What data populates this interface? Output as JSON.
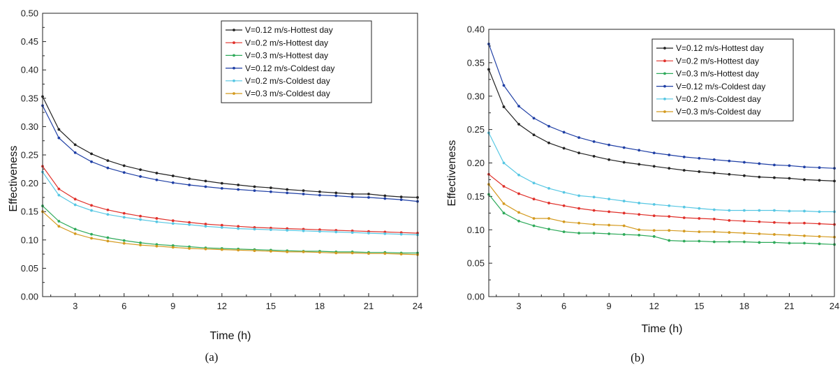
{
  "chart_data": [
    {
      "type": "line",
      "caption": "(a)",
      "xlabel": "Time (h)",
      "ylabel": "Effectiveness",
      "xlim": [
        1,
        24
      ],
      "ylim": [
        0,
        0.5
      ],
      "xticks": [
        3,
        6,
        9,
        12,
        15,
        18,
        21,
        24
      ],
      "yticks": [
        0.0,
        0.05,
        0.1,
        0.15,
        0.2,
        0.25,
        0.3,
        0.35,
        0.4,
        0.45,
        0.5
      ],
      "ytick_decimals": 2,
      "grid": false,
      "legend": "top-right",
      "x": [
        1,
        2,
        3,
        4,
        5,
        6,
        7,
        8,
        9,
        10,
        11,
        12,
        13,
        14,
        15,
        16,
        17,
        18,
        19,
        20,
        21,
        22,
        23,
        24
      ],
      "series": [
        {
          "name": "V=0.12 m/s-Hottest day",
          "color": "#222222",
          "values": [
            0.353,
            0.295,
            0.268,
            0.252,
            0.24,
            0.231,
            0.224,
            0.218,
            0.213,
            0.208,
            0.204,
            0.2,
            0.197,
            0.194,
            0.192,
            0.189,
            0.187,
            0.185,
            0.183,
            0.181,
            0.181,
            0.178,
            0.176,
            0.175
          ]
        },
        {
          "name": "V=0.2 m/s-Hottest day",
          "color": "#e0302a",
          "values": [
            0.23,
            0.19,
            0.172,
            0.161,
            0.153,
            0.147,
            0.142,
            0.138,
            0.134,
            0.131,
            0.128,
            0.126,
            0.124,
            0.122,
            0.121,
            0.12,
            0.119,
            0.118,
            0.117,
            0.116,
            0.115,
            0.114,
            0.113,
            0.112
          ]
        },
        {
          "name": "V=0.3 m/s-Hottest day",
          "color": "#2eaa5a",
          "values": [
            0.16,
            0.133,
            0.119,
            0.11,
            0.104,
            0.099,
            0.095,
            0.092,
            0.09,
            0.088,
            0.086,
            0.085,
            0.084,
            0.083,
            0.082,
            0.081,
            0.08,
            0.08,
            0.079,
            0.079,
            0.078,
            0.078,
            0.077,
            0.077
          ]
        },
        {
          "name": "V=0.12 m/s-Coldest day",
          "color": "#1f3fa5",
          "values": [
            0.337,
            0.28,
            0.254,
            0.238,
            0.227,
            0.219,
            0.212,
            0.206,
            0.201,
            0.197,
            0.194,
            0.191,
            0.189,
            0.187,
            0.185,
            0.183,
            0.181,
            0.179,
            0.178,
            0.176,
            0.175,
            0.173,
            0.171,
            0.168
          ]
        },
        {
          "name": "V=0.2 m/s-Coldest day",
          "color": "#57c7e3",
          "values": [
            0.22,
            0.179,
            0.162,
            0.152,
            0.145,
            0.14,
            0.136,
            0.132,
            0.129,
            0.127,
            0.124,
            0.122,
            0.12,
            0.119,
            0.118,
            0.117,
            0.116,
            0.115,
            0.114,
            0.113,
            0.112,
            0.111,
            0.11,
            0.109
          ]
        },
        {
          "name": "V=0.3 m/s-Coldest day",
          "color": "#d49a1f",
          "values": [
            0.15,
            0.124,
            0.111,
            0.103,
            0.098,
            0.094,
            0.091,
            0.089,
            0.087,
            0.085,
            0.084,
            0.083,
            0.082,
            0.081,
            0.08,
            0.079,
            0.079,
            0.078,
            0.077,
            0.077,
            0.076,
            0.076,
            0.075,
            0.074
          ]
        }
      ]
    },
    {
      "type": "line",
      "caption": "(b)",
      "xlabel": "Time (h)",
      "ylabel": "Effectiveness",
      "xlim": [
        1,
        24
      ],
      "ylim": [
        0,
        0.4
      ],
      "xticks": [
        3,
        6,
        9,
        12,
        15,
        18,
        21,
        24
      ],
      "yticks": [
        0.0,
        0.05,
        0.1,
        0.15,
        0.2,
        0.25,
        0.3,
        0.35,
        0.4
      ],
      "ytick_decimals": 2,
      "grid": false,
      "legend": "top-right",
      "x": [
        1,
        2,
        3,
        4,
        5,
        6,
        7,
        8,
        9,
        10,
        11,
        12,
        13,
        14,
        15,
        16,
        17,
        18,
        19,
        20,
        21,
        22,
        23,
        24
      ],
      "series": [
        {
          "name": "V=0.12 m/s-Hottest day",
          "color": "#222222",
          "values": [
            0.34,
            0.284,
            0.258,
            0.242,
            0.23,
            0.222,
            0.215,
            0.21,
            0.205,
            0.201,
            0.198,
            0.195,
            0.192,
            0.189,
            0.187,
            0.185,
            0.183,
            0.181,
            0.179,
            0.178,
            0.177,
            0.175,
            0.174,
            0.173
          ]
        },
        {
          "name": "V=0.2 m/s-Hottest day",
          "color": "#e0302a",
          "values": [
            0.183,
            0.165,
            0.154,
            0.146,
            0.14,
            0.136,
            0.132,
            0.129,
            0.127,
            0.125,
            0.123,
            0.121,
            0.12,
            0.118,
            0.117,
            0.116,
            0.114,
            0.113,
            0.112,
            0.111,
            0.11,
            0.11,
            0.109,
            0.108
          ]
        },
        {
          "name": "V=0.3 m/s-Hottest day",
          "color": "#2eaa5a",
          "values": [
            0.153,
            0.125,
            0.113,
            0.106,
            0.101,
            0.097,
            0.095,
            0.095,
            0.094,
            0.093,
            0.092,
            0.09,
            0.084,
            0.083,
            0.083,
            0.082,
            0.082,
            0.082,
            0.081,
            0.081,
            0.08,
            0.08,
            0.079,
            0.078
          ]
        },
        {
          "name": "V=0.12 m/s-Coldest day",
          "color": "#1f3fa5",
          "values": [
            0.378,
            0.316,
            0.285,
            0.267,
            0.255,
            0.246,
            0.238,
            0.232,
            0.227,
            0.223,
            0.219,
            0.215,
            0.212,
            0.209,
            0.207,
            0.205,
            0.203,
            0.201,
            0.199,
            0.197,
            0.196,
            0.194,
            0.193,
            0.192
          ]
        },
        {
          "name": "V=0.2 m/s-Coldest day",
          "color": "#57c7e3",
          "values": [
            0.245,
            0.2,
            0.182,
            0.17,
            0.162,
            0.156,
            0.151,
            0.149,
            0.146,
            0.143,
            0.14,
            0.138,
            0.136,
            0.134,
            0.132,
            0.13,
            0.129,
            0.129,
            0.129,
            0.129,
            0.128,
            0.128,
            0.127,
            0.127
          ]
        },
        {
          "name": "V=0.3 m/s-Coldest day",
          "color": "#d49a1f",
          "values": [
            0.168,
            0.139,
            0.126,
            0.117,
            0.117,
            0.112,
            0.11,
            0.108,
            0.107,
            0.106,
            0.1,
            0.099,
            0.099,
            0.098,
            0.097,
            0.097,
            0.096,
            0.095,
            0.094,
            0.093,
            0.092,
            0.091,
            0.09,
            0.089
          ]
        }
      ]
    }
  ]
}
